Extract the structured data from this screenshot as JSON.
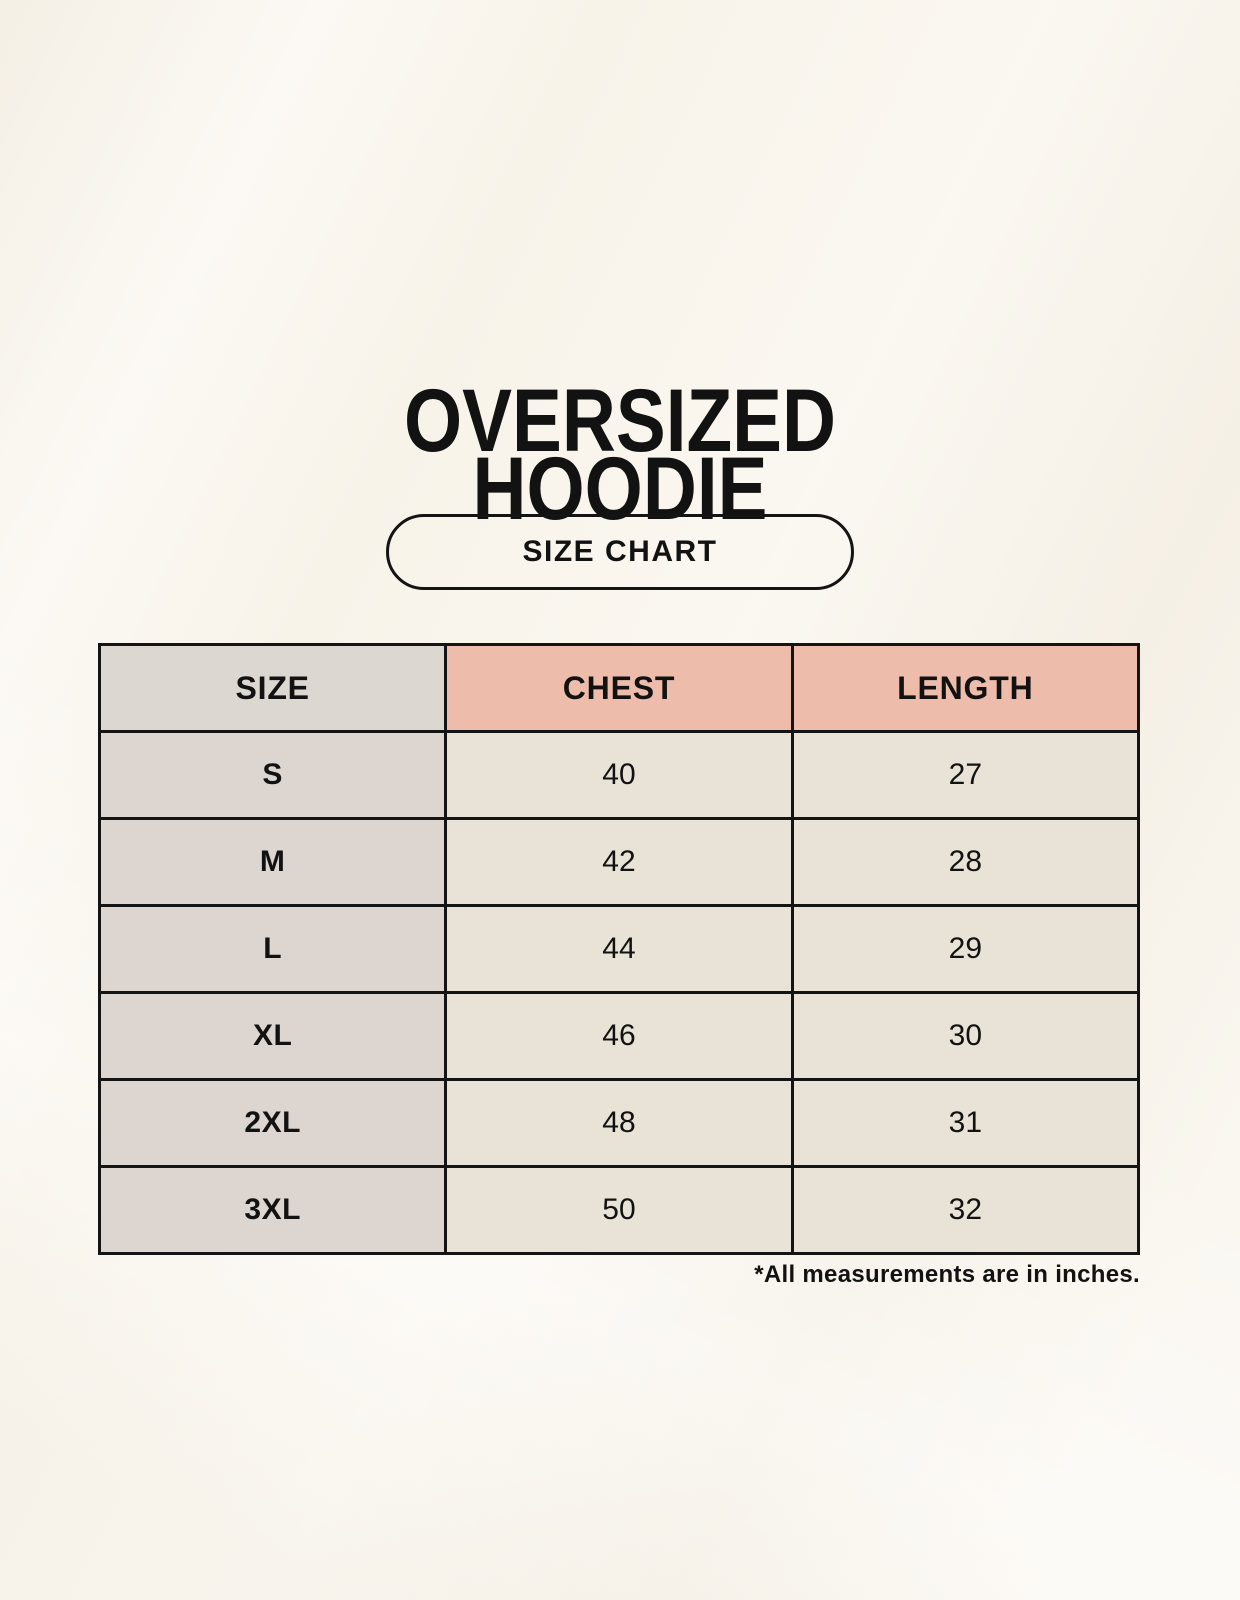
{
  "title": {
    "line1": "OVERSIZED",
    "line2": "HOODIE"
  },
  "size_chart_button": {
    "label": "SIZE CHART"
  },
  "table": {
    "headers": {
      "size": "SIZE",
      "chest": "CHEST",
      "length": "LENGTH"
    },
    "rows": [
      {
        "size": "S",
        "chest": "40",
        "length": "27"
      },
      {
        "size": "M",
        "chest": "42",
        "length": "28"
      },
      {
        "size": "L",
        "chest": "44",
        "length": "29"
      },
      {
        "size": "XL",
        "chest": "46",
        "length": "30"
      },
      {
        "size": "2XL",
        "chest": "48",
        "length": "31"
      },
      {
        "size": "3XL",
        "chest": "50",
        "length": "32"
      }
    ]
  },
  "note": "*All measurements are in inches.",
  "colors": {
    "background": "#f8f3e9",
    "text": "#121212",
    "border": "#141414",
    "header_size_bg": "#ddd7d1",
    "header_measure_bg": "#eebcab",
    "row_label_bg": "#dcd5d0",
    "cell_bg": "#e9e2d6"
  },
  "chart_data": {
    "type": "table",
    "title": "OVERSIZED HOODIE",
    "subtitle": "SIZE CHART",
    "columns": [
      "SIZE",
      "CHEST",
      "LENGTH"
    ],
    "rows": [
      [
        "S",
        40,
        27
      ],
      [
        "M",
        42,
        28
      ],
      [
        "L",
        44,
        29
      ],
      [
        "XL",
        46,
        30
      ],
      [
        "2XL",
        48,
        31
      ],
      [
        "3XL",
        50,
        32
      ]
    ],
    "footnote": "*All measurements are in inches.",
    "units": "inches"
  }
}
